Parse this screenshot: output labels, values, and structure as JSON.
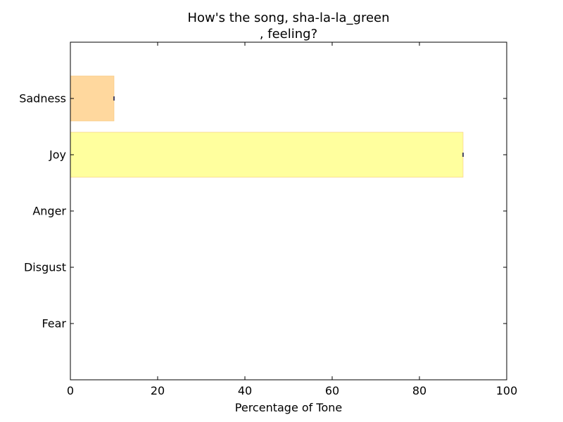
{
  "chart_data": {
    "type": "bar",
    "orientation": "horizontal",
    "title": [
      "How's the song, sha-la-la_green",
      ", feeling?"
    ],
    "xlabel": "Percentage of Tone",
    "ylabel": "",
    "xlim": [
      0,
      100
    ],
    "x_ticks": [
      "0",
      "20",
      "40",
      "60",
      "80",
      "100"
    ],
    "categories": [
      "Fear",
      "Disgust",
      "Anger",
      "Joy",
      "Sadness"
    ],
    "values": [
      0,
      0,
      0,
      90,
      10
    ],
    "colors": {
      "Joy": "#ffff99",
      "Sadness": "#ffd699"
    },
    "grid": false,
    "legend": "none"
  }
}
